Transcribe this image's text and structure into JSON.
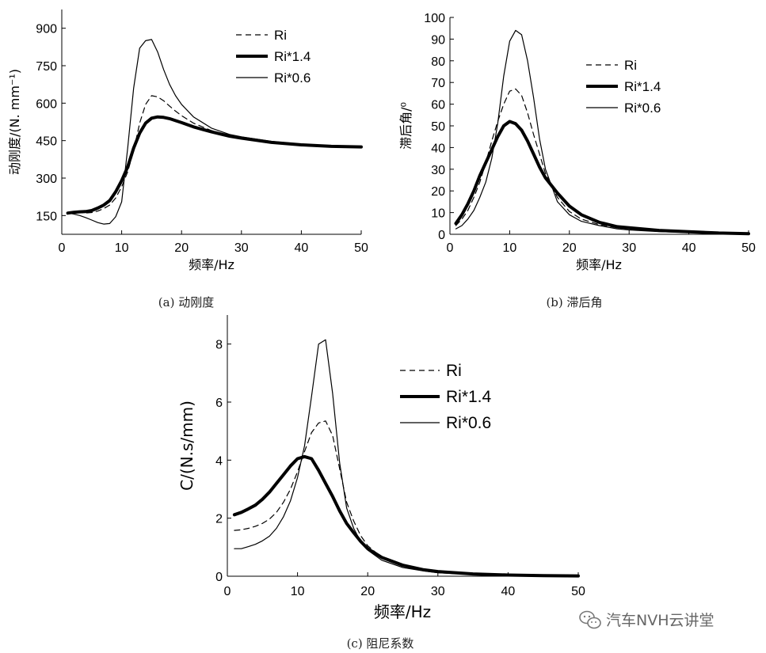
{
  "watermark": "汽车NVH云讲堂",
  "chart_data": [
    {
      "id": "a",
      "type": "line",
      "caption": "(a) 动刚度",
      "xlabel": "频率/Hz",
      "ylabel": "动刚度/(N. mm⁻¹)",
      "xlim": [
        0,
        50
      ],
      "ylim": [
        75,
        975
      ],
      "xticks": [
        0,
        10,
        20,
        30,
        40,
        50
      ],
      "yticks": [
        150,
        300,
        450,
        600,
        750,
        900
      ],
      "legend_position": "top-right",
      "series": [
        {
          "name": "Ri",
          "style": "dashed",
          "x": [
            1,
            2,
            3,
            4,
            5,
            6,
            7,
            8,
            9,
            10,
            11,
            12,
            13,
            14,
            15,
            16,
            17,
            18,
            19,
            20,
            22,
            25,
            28,
            30,
            35,
            40,
            45,
            50
          ],
          "y": [
            158,
            162,
            162,
            160,
            162,
            168,
            178,
            192,
            220,
            265,
            325,
            410,
            520,
            595,
            630,
            625,
            610,
            588,
            568,
            550,
            520,
            490,
            470,
            462,
            445,
            435,
            428,
            425
          ]
        },
        {
          "name": "Ri*1.4",
          "style": "thick",
          "x": [
            1,
            2,
            3,
            4,
            5,
            6,
            7,
            8,
            9,
            10,
            11,
            12,
            13,
            14,
            15,
            16,
            17,
            18,
            19,
            20,
            22,
            25,
            28,
            30,
            35,
            40,
            45,
            50
          ],
          "y": [
            160,
            163,
            165,
            166,
            170,
            180,
            192,
            210,
            245,
            290,
            345,
            420,
            480,
            520,
            540,
            545,
            543,
            538,
            530,
            522,
            505,
            485,
            468,
            460,
            443,
            433,
            427,
            425
          ]
        },
        {
          "name": "Ri*0.6",
          "style": "thin",
          "x": [
            1,
            2,
            3,
            4,
            5,
            6,
            7,
            8,
            9,
            10,
            11,
            12,
            13,
            14,
            15,
            16,
            17,
            18,
            19,
            20,
            22,
            25,
            28,
            30,
            35,
            40,
            45,
            50
          ],
          "y": [
            160,
            156,
            150,
            142,
            132,
            122,
            116,
            118,
            145,
            205,
            420,
            660,
            820,
            850,
            855,
            805,
            735,
            675,
            630,
            595,
            545,
            500,
            475,
            465,
            447,
            436,
            428,
            425
          ]
        }
      ]
    },
    {
      "id": "b",
      "type": "line",
      "caption": "(b) 滞后角",
      "xlabel": "频率/Hz",
      "ylabel": "滞后角/⁰",
      "xlim": [
        0,
        50
      ],
      "ylim": [
        0,
        100
      ],
      "xticks": [
        0,
        10,
        20,
        30,
        40,
        50
      ],
      "yticks": [
        0,
        10,
        20,
        30,
        40,
        50,
        60,
        70,
        80,
        90,
        100
      ],
      "legend_position": "top-right",
      "series": [
        {
          "name": "Ri",
          "style": "dashed",
          "x": [
            1,
            2,
            3,
            4,
            5,
            6,
            7,
            8,
            9,
            10,
            11,
            12,
            13,
            14,
            15,
            16,
            18,
            20,
            22,
            25,
            28,
            30,
            35,
            40,
            45,
            50
          ],
          "y": [
            4,
            7,
            11,
            17,
            24,
            33,
            43,
            52,
            60,
            66,
            67,
            64,
            56,
            46,
            37,
            28,
            17,
            10.5,
            7,
            4.5,
            3,
            2.5,
            1.5,
            1,
            0.5,
            0.3
          ]
        },
        {
          "name": "Ri*1.4",
          "style": "thick",
          "x": [
            1,
            2,
            3,
            4,
            5,
            6,
            7,
            8,
            9,
            10,
            11,
            12,
            13,
            14,
            15,
            16,
            18,
            20,
            22,
            25,
            28,
            30,
            35,
            40,
            45,
            50
          ],
          "y": [
            5,
            9,
            14,
            20,
            27,
            33,
            39,
            45,
            50,
            52,
            51,
            48,
            43,
            37,
            31,
            26,
            19,
            13,
            9,
            5.5,
            3.5,
            3,
            1.8,
            1.2,
            0.6,
            0.3
          ]
        },
        {
          "name": "Ri*0.6",
          "style": "thin",
          "x": [
            1,
            2,
            3,
            4,
            5,
            6,
            7,
            8,
            9,
            10,
            11,
            12,
            13,
            14,
            15,
            16,
            18,
            20,
            22,
            25,
            28,
            30,
            35,
            40,
            45,
            50
          ],
          "y": [
            2.5,
            4,
            7,
            11,
            17,
            24,
            35,
            51,
            73,
            89,
            94,
            92,
            80,
            63,
            44,
            30,
            15,
            9,
            6,
            4,
            2.5,
            2,
            1.2,
            0.8,
            0.4,
            0.2
          ]
        }
      ]
    },
    {
      "id": "c",
      "type": "line",
      "caption": "(c) 阻尼系数",
      "xlabel": "频率/Hz",
      "ylabel": "C/(N.s/mm)",
      "xlim": [
        0,
        50
      ],
      "ylim": [
        0,
        9
      ],
      "xticks": [
        0,
        10,
        20,
        30,
        40,
        50
      ],
      "yticks": [
        0,
        2,
        4,
        6,
        8
      ],
      "legend_position": "top-right",
      "series": [
        {
          "name": "Ri",
          "style": "dashed",
          "x": [
            1,
            2,
            3,
            4,
            5,
            6,
            7,
            8,
            9,
            10,
            11,
            12,
            13,
            14,
            15,
            16,
            17,
            18,
            19,
            20,
            22,
            25,
            28,
            30,
            35,
            40,
            45,
            50
          ],
          "y": [
            1.58,
            1.6,
            1.65,
            1.72,
            1.82,
            1.97,
            2.2,
            2.55,
            3.0,
            3.6,
            4.3,
            4.95,
            5.28,
            5.35,
            4.85,
            3.7,
            2.55,
            1.9,
            1.4,
            1.05,
            0.65,
            0.35,
            0.2,
            0.14,
            0.07,
            0.04,
            0.02,
            0.01
          ]
        },
        {
          "name": "Ri*1.4",
          "style": "thick",
          "x": [
            1,
            2,
            3,
            4,
            5,
            6,
            7,
            8,
            9,
            10,
            11,
            12,
            13,
            14,
            15,
            16,
            17,
            18,
            19,
            20,
            22,
            25,
            28,
            30,
            35,
            40,
            45,
            50
          ],
          "y": [
            2.12,
            2.2,
            2.32,
            2.45,
            2.65,
            2.9,
            3.2,
            3.5,
            3.8,
            4.05,
            4.12,
            4.05,
            3.65,
            3.2,
            2.75,
            2.25,
            1.82,
            1.5,
            1.2,
            0.95,
            0.65,
            0.38,
            0.22,
            0.16,
            0.08,
            0.04,
            0.02,
            0.01
          ]
        },
        {
          "name": "Ri*0.6",
          "style": "thin",
          "x": [
            1,
            2,
            3,
            4,
            5,
            6,
            7,
            8,
            9,
            10,
            11,
            12,
            13,
            14,
            15,
            16,
            17,
            18,
            19,
            20,
            22,
            25,
            28,
            30,
            35,
            40,
            45,
            50
          ],
          "y": [
            0.95,
            0.95,
            1.02,
            1.1,
            1.22,
            1.38,
            1.65,
            2.05,
            2.6,
            3.4,
            4.5,
            6.2,
            8.0,
            8.15,
            6.3,
            3.9,
            2.35,
            1.65,
            1.2,
            0.9,
            0.55,
            0.3,
            0.18,
            0.12,
            0.06,
            0.03,
            0.02,
            0.01
          ]
        }
      ]
    }
  ]
}
